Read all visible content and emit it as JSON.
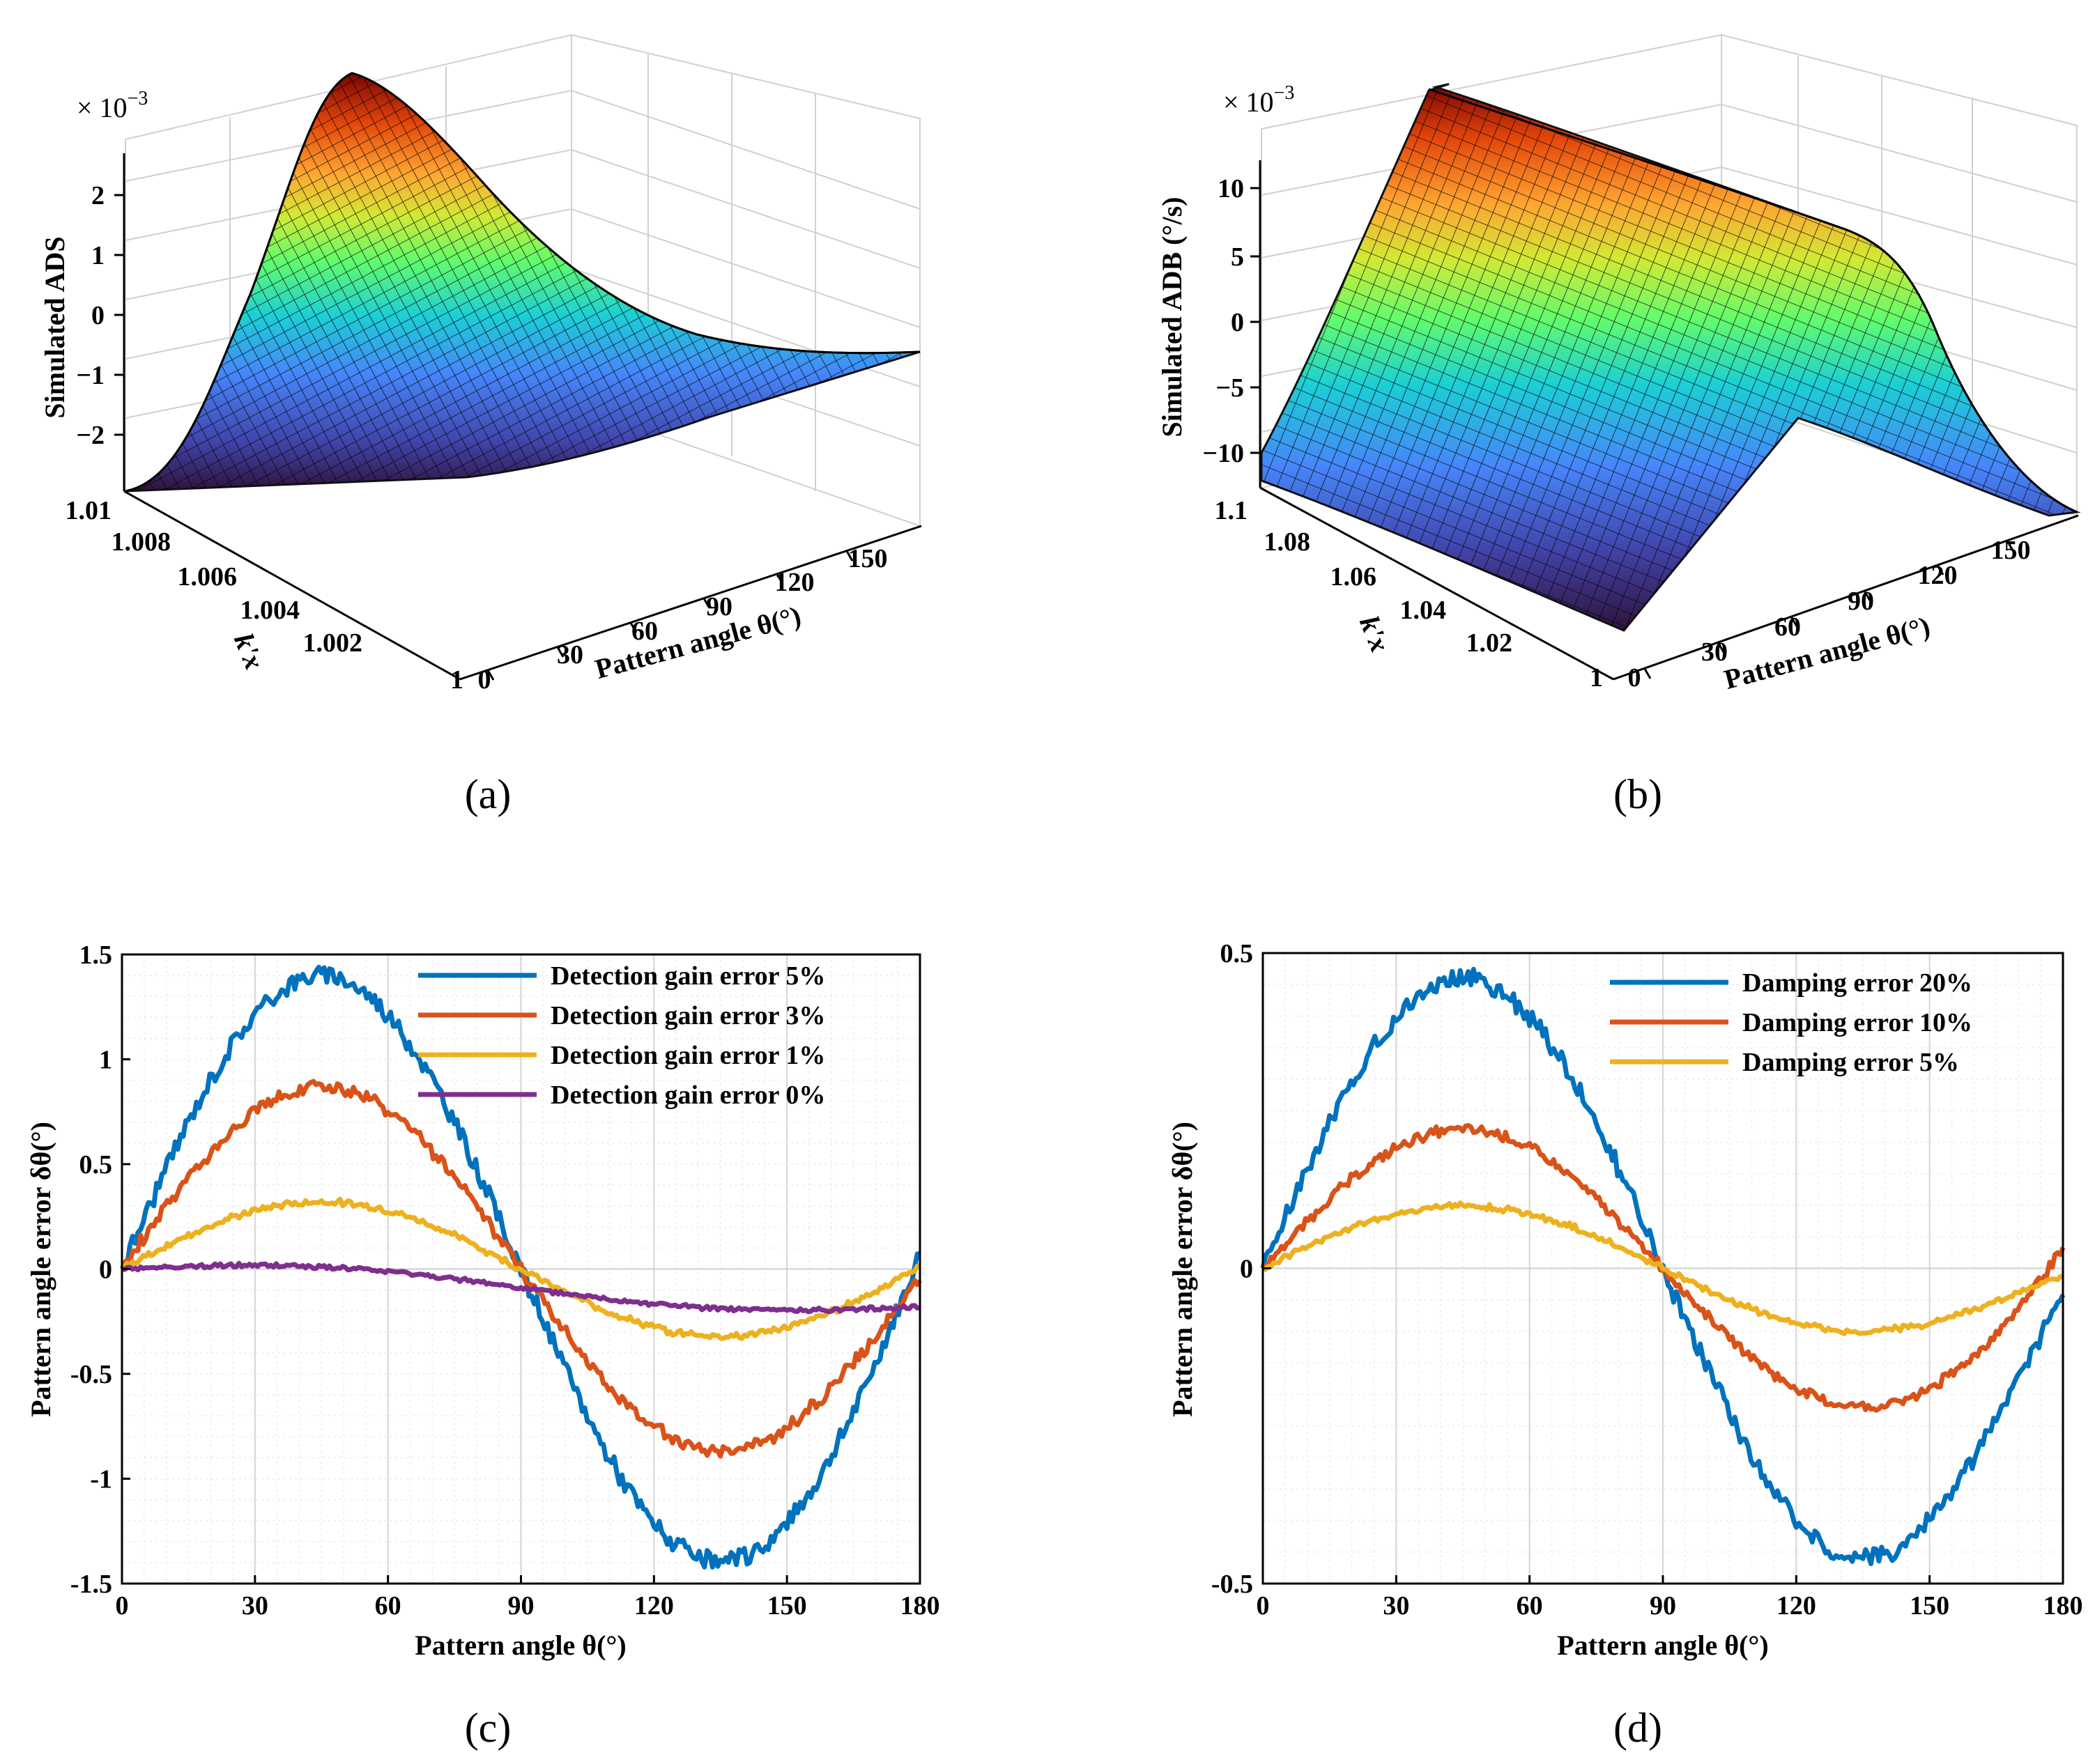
{
  "chart_data": [
    {
      "panel": "a",
      "type": "surface",
      "caption": "(a)",
      "exponent_label": "× 10",
      "exponent_power": "−3",
      "zlabel": "Simulated ADS",
      "xlabel": "Pattern angle θ(°)",
      "ylabel": "k'x",
      "zticks": [
        "2",
        "1",
        "0",
        "−1",
        "−2"
      ],
      "xticks": [
        "0",
        "30",
        "60",
        "90",
        "120",
        "150"
      ],
      "yticks": [
        "1.01",
        "1.008",
        "1.006",
        "1.004",
        "1.002",
        "1"
      ],
      "xlim": [
        0,
        180
      ],
      "ylim": [
        1,
        1.01
      ],
      "zlim": [
        -2.6,
        2.9
      ],
      "peak": {
        "theta": 45,
        "k": 1.01,
        "value": 2.8
      }
    },
    {
      "panel": "b",
      "type": "surface",
      "caption": "(b)",
      "exponent_label": "× 10",
      "exponent_power": "−3",
      "zlabel": "Simulated ADB (°/s)",
      "xlabel": "Pattern angle θ(°)",
      "ylabel": "k'x",
      "zticks": [
        "10",
        "5",
        "0",
        "−5",
        "−10"
      ],
      "xticks": [
        "0",
        "30",
        "60",
        "90",
        "120",
        "150"
      ],
      "yticks": [
        "1.1",
        "1.08",
        "1.06",
        "1.04",
        "1.02",
        "1"
      ],
      "xlim": [
        0,
        180
      ],
      "ylim": [
        1,
        1.1
      ],
      "zlim": [
        -12,
        12
      ],
      "peak": {
        "theta": 90,
        "value": 12
      }
    },
    {
      "panel": "c",
      "type": "line",
      "caption": "(c)",
      "xlabel": "Pattern angle θ(°)",
      "ylabel": "Pattern angle error δθ(°)",
      "xlim": [
        0,
        180
      ],
      "ylim": [
        -1.5,
        1.5
      ],
      "xticks": [
        "0",
        "30",
        "60",
        "90",
        "120",
        "150",
        "180"
      ],
      "yticks": [
        "1.5",
        "1",
        "0.5",
        "0",
        "-0.5",
        "-1",
        "-1.5"
      ],
      "grid": true,
      "legend_position": "top-right",
      "series": [
        {
          "name": "Detection gain error 5%",
          "color": "#0072BD",
          "amplitude": 1.4,
          "peak_at": 45,
          "trough_at": 130,
          "end_value": 0.12
        },
        {
          "name": "Detection gain error 3%",
          "color": "#D95319",
          "amplitude": 0.87,
          "peak_at": 45,
          "trough_at": 133,
          "end_value": -0.08
        },
        {
          "name": "Detection gain error 1%",
          "color": "#EDB120",
          "amplitude": 0.32,
          "peak_at": 45,
          "trough_at": 140,
          "end_value": 0.02
        },
        {
          "name": "Detection gain error 0%",
          "color": "#7E2F8E",
          "amplitude": 0.06,
          "peak_at": 20,
          "trough_at": 170,
          "end_value": -0.2
        }
      ]
    },
    {
      "panel": "d",
      "type": "line",
      "caption": "(d)",
      "xlabel": "Pattern angle θ(°)",
      "ylabel": "Pattern angle error δθ(°)",
      "xlim": [
        0,
        180
      ],
      "ylim": [
        -0.5,
        0.5
      ],
      "xticks": [
        "0",
        "30",
        "60",
        "90",
        "120",
        "150",
        "180"
      ],
      "yticks": [
        "0.5",
        "0",
        "-0.5"
      ],
      "grid": true,
      "legend_position": "top-right",
      "series": [
        {
          "name": "Damping error 20%",
          "color": "#0072BD",
          "amplitude": 0.46,
          "peak_at": 47,
          "trough_at": 138,
          "end_value": -0.06
        },
        {
          "name": "Damping error  10%",
          "color": "#D95319",
          "amplitude": 0.22,
          "peak_at": 45,
          "trough_at": 135,
          "end_value": 0.05
        },
        {
          "name": "Damping error  5%",
          "color": "#EDB120",
          "amplitude": 0.1,
          "peak_at": 35,
          "trough_at": 140,
          "end_value": -0.02
        }
      ]
    }
  ]
}
